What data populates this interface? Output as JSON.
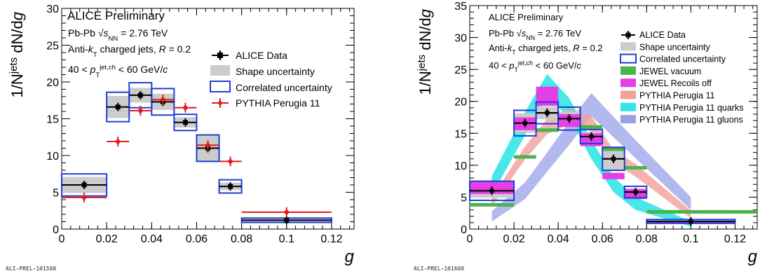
{
  "colors": {
    "data": "#000000",
    "shape_fill": "#cccccc",
    "correlated": "#1f3fd6",
    "pythia": "#e41a1c",
    "jewel_vac": "#2ea82e",
    "jewel_rec": "#e020e0",
    "pythia_band": "#f2a09c",
    "quarks": "#33e5e5",
    "gluons": "#9aa0e8"
  },
  "chart_data": [
    {
      "type": "scatter",
      "title": "",
      "xlabel": "g",
      "ylabel": "1/N jets dN/dg",
      "xlim": [
        0,
        0.13
      ],
      "ylim": [
        0,
        30
      ],
      "xticks": [
        "0",
        "0.02",
        "0.04",
        "0.06",
        "0.08",
        "0.1",
        "0.12"
      ],
      "yticks": [
        "0",
        "5",
        "10",
        "15",
        "20",
        "25",
        "30"
      ],
      "stamp": "ALI-PREL-101580",
      "annotations": {
        "line1": "ALICE Preliminary",
        "line2": "Pb-Pb √s_NN = 2.76 TeV",
        "line3": "Anti-k_T charged jets, R = 0.2",
        "line4": "40 < p_T^jet,ch < 60 GeV/c"
      },
      "legend": [
        "ALICE Data",
        "Shape uncertainty",
        "Correlated uncertainty",
        "PYTHIA Perugia 11"
      ],
      "series": [
        {
          "name": "ALICE Data",
          "bins": [
            [
              0,
              0.02
            ],
            [
              0.02,
              0.03
            ],
            [
              0.03,
              0.04
            ],
            [
              0.04,
              0.05
            ],
            [
              0.05,
              0.06
            ],
            [
              0.06,
              0.07
            ],
            [
              0.07,
              0.08
            ],
            [
              0.08,
              0.12
            ]
          ],
          "values": [
            6.0,
            16.6,
            18.2,
            17.3,
            14.5,
            11.0,
            5.8,
            1.2
          ],
          "shape_err": [
            1.1,
            1.5,
            1.0,
            1.1,
            0.7,
            1.8,
            0.5,
            0.2
          ],
          "corr_err": [
            1.5,
            2.0,
            1.7,
            1.8,
            1.1,
            1.8,
            0.9,
            0.3
          ]
        },
        {
          "name": "PYTHIA Perugia 11",
          "bins": [
            [
              0,
              0.02
            ],
            [
              0.02,
              0.03
            ],
            [
              0.03,
              0.04
            ],
            [
              0.04,
              0.05
            ],
            [
              0.05,
              0.06
            ],
            [
              0.06,
              0.07
            ],
            [
              0.07,
              0.08
            ],
            [
              0.08,
              0.12
            ]
          ],
          "values": [
            4.3,
            11.9,
            16.1,
            17.6,
            16.5,
            11.4,
            9.2,
            2.3
          ]
        }
      ]
    },
    {
      "type": "scatter",
      "title": "",
      "xlabel": "g",
      "ylabel": "1/N jets dN/dg",
      "xlim": [
        0,
        0.13
      ],
      "ylim": [
        0,
        35
      ],
      "xticks": [
        "0",
        "0.02",
        "0.04",
        "0.06",
        "0.08",
        "0.1",
        "0.12"
      ],
      "yticks": [
        "0",
        "5",
        "10",
        "15",
        "20",
        "25",
        "30",
        "35"
      ],
      "stamp": "ALI-PREL-101608",
      "annotations": {
        "line1": "ALICE Preliminary",
        "line2": "Pb-Pb √s_NN = 2.76 TeV",
        "line3": "Anti-k_T charged jets, R = 0.2",
        "line4": "40 < p_T^jet,ch < 60 GeV/c"
      },
      "legend": [
        "ALICE Data",
        "Shape uncertainty",
        "Correlated uncertainty",
        "JEWEL vacuum",
        "JEWEL Recoils off",
        "PYTHIA Perugia 11",
        "PYTHIA Perugia 11 quarks",
        "PYTHIA Perugia 11 gluons"
      ],
      "series": [
        {
          "name": "ALICE Data",
          "bins": [
            [
              0,
              0.02
            ],
            [
              0.02,
              0.03
            ],
            [
              0.03,
              0.04
            ],
            [
              0.04,
              0.05
            ],
            [
              0.05,
              0.06
            ],
            [
              0.06,
              0.07
            ],
            [
              0.07,
              0.08
            ],
            [
              0.08,
              0.12
            ]
          ],
          "values": [
            6.0,
            16.6,
            18.2,
            17.3,
            14.5,
            11.0,
            5.8,
            1.2
          ],
          "shape_err": [
            1.1,
            1.5,
            1.0,
            1.1,
            0.7,
            1.8,
            0.5,
            0.2
          ],
          "corr_err": [
            1.5,
            2.0,
            1.7,
            1.8,
            1.1,
            1.8,
            0.9,
            0.3
          ]
        },
        {
          "name": "JEWEL vacuum",
          "bins": [
            [
              0,
              0.02
            ],
            [
              0.02,
              0.03
            ],
            [
              0.03,
              0.04
            ],
            [
              0.04,
              0.05
            ],
            [
              0.05,
              0.06
            ],
            [
              0.06,
              0.07
            ],
            [
              0.07,
              0.08
            ],
            [
              0.08,
              0.13
            ]
          ],
          "values": [
            3.8,
            11.3,
            15.5,
            17.0,
            16.0,
            12.5,
            9.6,
            2.7
          ]
        },
        {
          "name": "JEWEL Recoils off",
          "bins": [
            [
              0,
              0.02
            ],
            [
              0.02,
              0.03
            ],
            [
              0.03,
              0.04
            ],
            [
              0.04,
              0.05
            ],
            [
              0.05,
              0.06
            ],
            [
              0.06,
              0.07
            ],
            [
              0.07,
              0.08
            ],
            [
              0.08,
              0.12
            ]
          ],
          "values": [
            6.5,
            16.5,
            20.8,
            17.0,
            14.0,
            8.3,
            5.5,
            1.1
          ],
          "err": [
            1.0,
            1.0,
            1.5,
            1.0,
            1.0,
            0.5,
            0.8,
            0.2
          ]
        },
        {
          "name": "PYTHIA Perugia 11",
          "x": [
            0.01,
            0.025,
            0.035,
            0.045,
            0.055,
            0.065,
            0.075,
            0.1
          ],
          "values": [
            4.3,
            11.9,
            16.1,
            17.6,
            16.5,
            11.4,
            9.2,
            2.3
          ],
          "err": [
            0.7,
            1.0,
            1.2,
            1.2,
            1.2,
            1.0,
            1.0,
            0.6
          ]
        },
        {
          "name": "PYTHIA Perugia 11 quarks",
          "x": [
            0.01,
            0.025,
            0.035,
            0.045,
            0.055,
            0.065,
            0.075,
            0.1
          ],
          "values": [
            6.8,
            16.5,
            22.5,
            19.0,
            12.5,
            7.0,
            4.0,
            0.8
          ],
          "err": [
            1.5,
            1.8,
            1.8,
            1.5,
            1.5,
            1.2,
            1.0,
            0.4
          ]
        },
        {
          "name": "PYTHIA Perugia 11 gluons",
          "x": [
            0.01,
            0.025,
            0.035,
            0.045,
            0.055,
            0.065,
            0.075,
            0.1
          ],
          "values": [
            2.0,
            6.0,
            10.5,
            15.0,
            19.5,
            16.0,
            12.5,
            4.0
          ],
          "err": [
            0.8,
            1.3,
            1.5,
            1.8,
            1.8,
            1.6,
            1.4,
            1.0
          ]
        }
      ]
    }
  ]
}
